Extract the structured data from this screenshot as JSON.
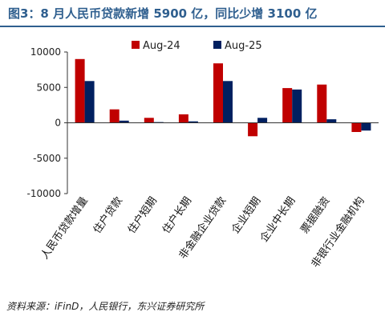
{
  "figure": {
    "title": "图3：8 月人民币贷款新增 5900 亿，同比少增 3100 亿",
    "source": "资料来源：iFinD，人民银行，东兴证券研究所"
  },
  "chart_data": {
    "type": "bar",
    "categories": [
      "人民币贷款增量",
      "住户贷款",
      "住户短期",
      "住户长期",
      "非金融企业贷款",
      "企业短期",
      "企业中长期",
      "票据融资",
      "非银行业金融机构"
    ],
    "series": [
      {
        "name": "Aug-24",
        "color": "#c00000",
        "values": [
          9000,
          1900,
          700,
          1200,
          8400,
          -1900,
          4900,
          5400,
          -1300
        ]
      },
      {
        "name": "Aug-25",
        "color": "#002060",
        "values": [
          5900,
          300,
          100,
          200,
          5900,
          700,
          4700,
          500,
          -1100
        ]
      }
    ],
    "ylim": [
      -10000,
      10000
    ],
    "yticks": [
      -10000,
      -5000,
      0,
      5000,
      10000
    ],
    "grid": false,
    "legend_position": "top-center"
  }
}
